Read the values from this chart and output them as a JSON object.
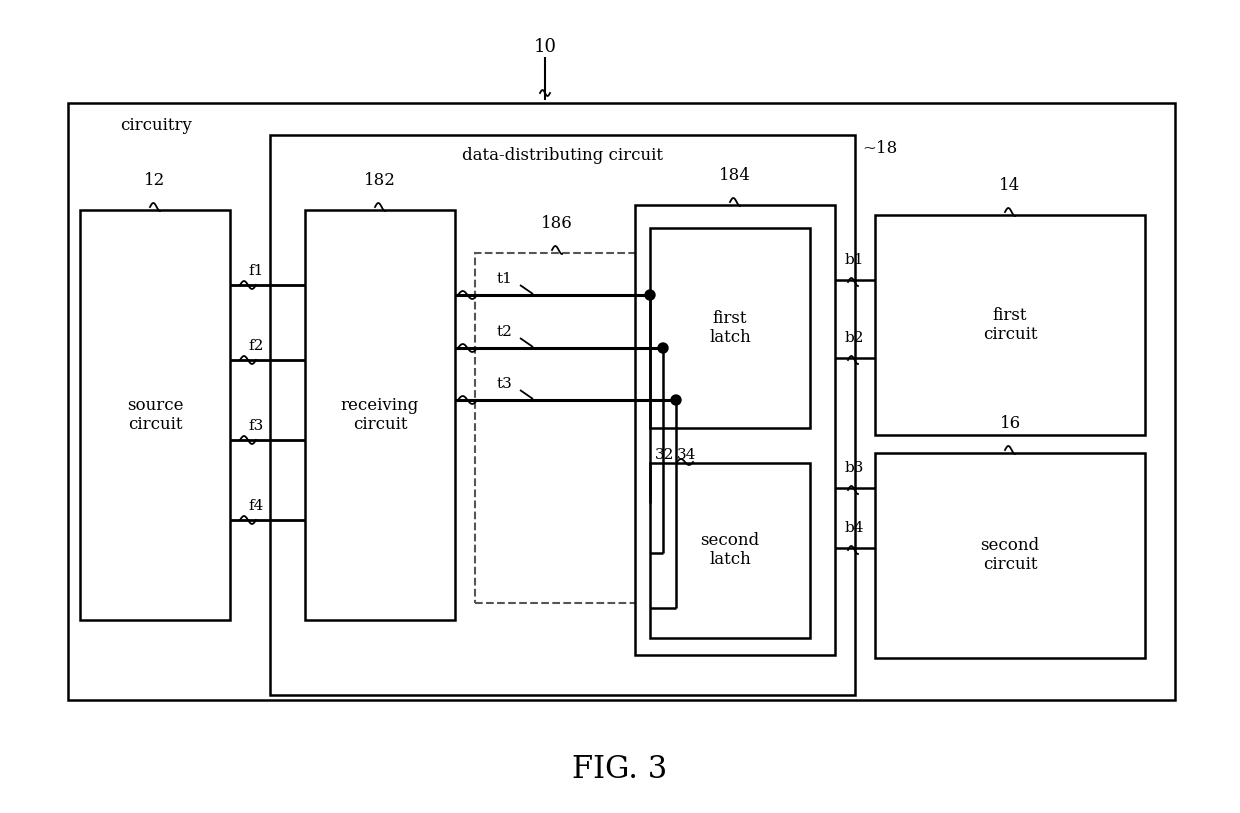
{
  "bg_color": "#ffffff",
  "fig_caption": "FIG. 3",
  "label_10": "10",
  "label_circuitry": "circuitry",
  "label_12": "12",
  "label_14": "14",
  "label_16": "16",
  "label_18": "~18",
  "label_182": "182",
  "label_184": "184",
  "label_186": "186",
  "label_32": "32",
  "label_34": "34",
  "label_ddc": "data-distributing circuit",
  "label_source": "source\ncircuit",
  "label_receiving": "receiving\ncircuit",
  "label_first_latch": "first\nlatch",
  "label_second_latch": "second\nlatch",
  "label_first_circuit": "first\ncircuit",
  "label_second_circuit": "second\ncircuit",
  "label_f1": "f1",
  "label_f2": "f2",
  "label_f3": "f3",
  "label_f4": "f4",
  "label_t1": "t1",
  "label_t2": "t2",
  "label_t3": "t3",
  "label_b1": "b1",
  "label_b2": "b2",
  "label_b3": "b3",
  "label_b4": "b4"
}
